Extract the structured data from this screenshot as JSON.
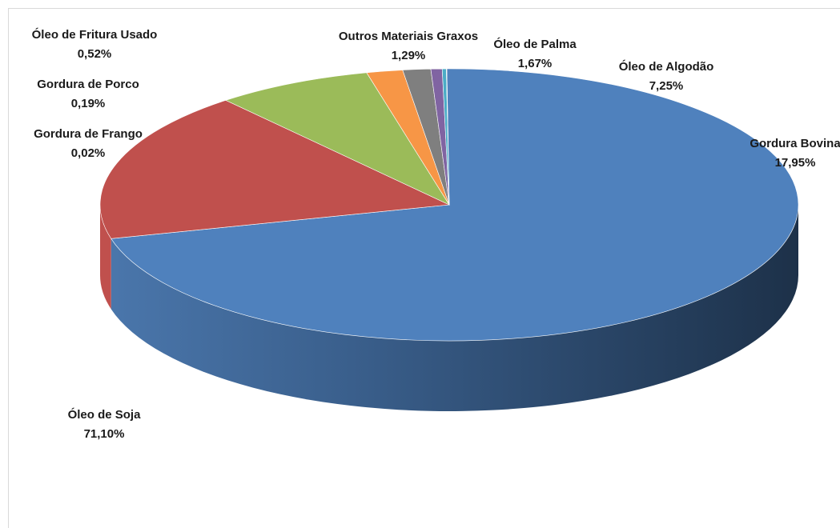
{
  "chart_data": {
    "type": "pie",
    "style": "3d",
    "slices": [
      {
        "label": "Óleo de Soja",
        "value": 71.1,
        "value_label": "71,10%",
        "color": "#4f81bd"
      },
      {
        "label": "Gordura Bovina",
        "value": 17.95,
        "value_label": "17,95%",
        "color": "#c0504d"
      },
      {
        "label": "Óleo de Algodão",
        "value": 7.25,
        "value_label": "7,25%",
        "color": "#9bbb59"
      },
      {
        "label": "Óleo de Palma",
        "value": 1.67,
        "value_label": "1,67%",
        "color": "#f79646"
      },
      {
        "label": "Outros Materiais Graxos",
        "value": 1.29,
        "value_label": "1,29%",
        "color": "#7f7f7f"
      },
      {
        "label": "Óleo de Fritura Usado",
        "value": 0.52,
        "value_label": "0,52%",
        "color": "#8064a2"
      },
      {
        "label": "Gordura de Porco",
        "value": 0.19,
        "value_label": "0,19%",
        "color": "#4bacc6"
      },
      {
        "label": "Gordura de Frango",
        "value": 0.02,
        "value_label": "0,02%",
        "color": "#2c4d75"
      }
    ],
    "legend": "none",
    "data_labels": "category and percent"
  }
}
